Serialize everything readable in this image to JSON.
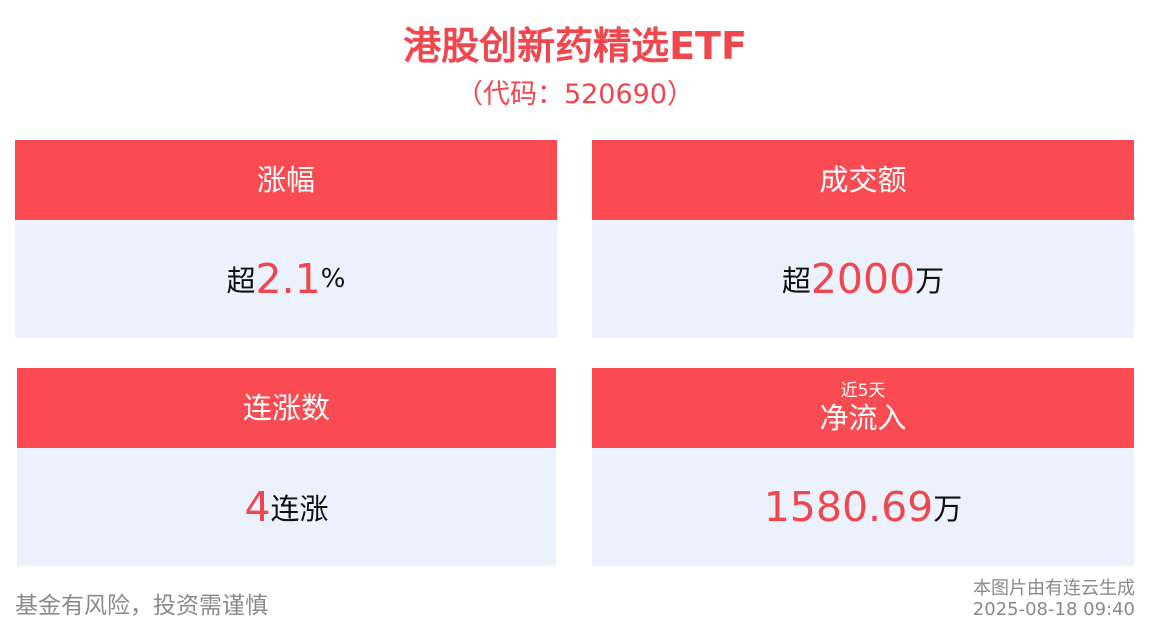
{
  "header": {
    "title": "港股创新药精选ETF",
    "subtitle": "（代码：520690）"
  },
  "cards": [
    {
      "label": "涨幅",
      "prefix": "超",
      "value": "2.1",
      "suffix": "%"
    },
    {
      "label": "成交额",
      "prefix": "超",
      "value": "2000",
      "suffix": "万"
    },
    {
      "label": "连涨数",
      "prefix": "",
      "value": "4",
      "suffix": "连涨"
    },
    {
      "label_small": "近5天",
      "label": "净流入",
      "prefix": "",
      "value": "1580.69",
      "suffix": "万"
    }
  ],
  "footer": {
    "disclaimer": "基金有风险，投资需谨慎",
    "source": "本图片由有连云生成",
    "timestamp": "2025-08-18 09:40"
  },
  "colors": {
    "accent": "#f0474e",
    "header_bg": "#fa4b52",
    "card_bg": "#ecf2fd"
  }
}
